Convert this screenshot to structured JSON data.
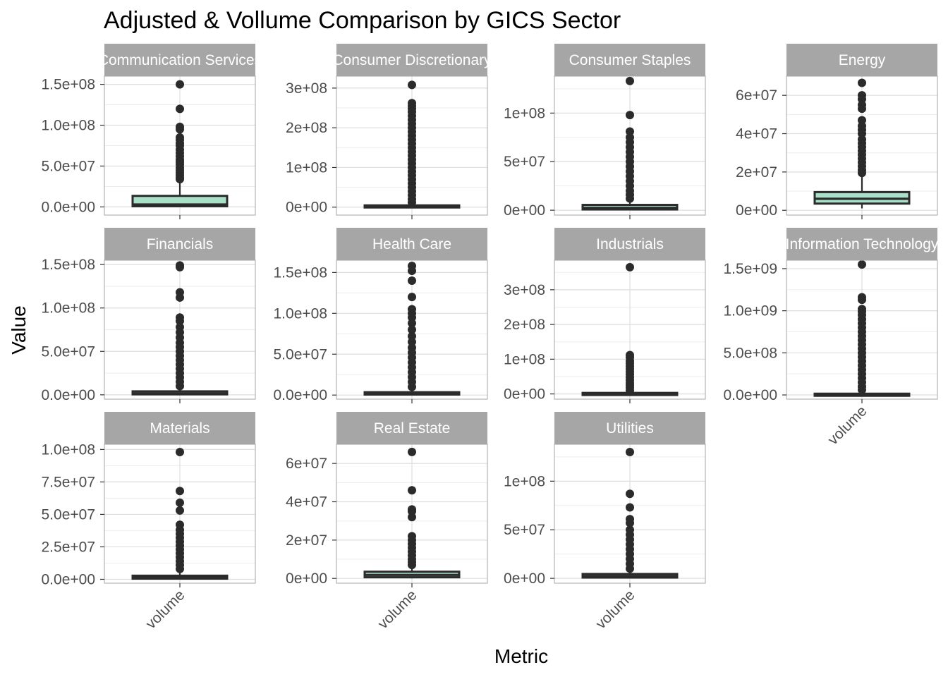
{
  "chart_data": {
    "type": "boxplot",
    "title": "Adjusted & Vollume Comparison by GICS Sector",
    "xlabel": "Metric",
    "ylabel": "Value",
    "x_category": "volume",
    "facet_layout": {
      "columns": 4,
      "rows": 3,
      "scales": "free_y"
    },
    "grid": true,
    "colors": {
      "strip_bg": "#a6a6a6",
      "strip_text": "#ffffff",
      "panel_border": "#b3b3b3",
      "grid_major": "#dedede",
      "grid_minor": "#ededed",
      "box_outline": "#2b2b2b",
      "outlier": "#2b2b2b",
      "box_fill": "#a8e0c8"
    },
    "panels": [
      {
        "sector": "Communication Services",
        "ylim": [
          -10000000.0,
          160000000.0
        ],
        "ticks": [
          0,
          50000000.0,
          100000000.0,
          150000000.0
        ],
        "tick_labels": [
          "0.0e+00",
          "5.0e+07",
          "1.0e+08",
          "1.5e+08"
        ],
        "box": {
          "lower_whisker": 0,
          "q1": 800000,
          "median": 3000000,
          "q3": 13500000,
          "upper_whisker": 33000000
        },
        "outliers": [
          150000000,
          120000000,
          98000000,
          95000000,
          85000000,
          82000000,
          78000000,
          75000000,
          70000000,
          66000000,
          62000000,
          58000000,
          55000000,
          52000000,
          48000000,
          45000000,
          42000000,
          39000000,
          36000000,
          34000000
        ]
      },
      {
        "sector": "Consumer Discretionary",
        "ylim": [
          -20000000.0,
          330000000.0
        ],
        "ticks": [
          0,
          100000000.0,
          200000000.0,
          300000000.0
        ],
        "tick_labels": [
          "0e+00",
          "1e+08",
          "2e+08",
          "3e+08"
        ],
        "box": {
          "lower_whisker": 0,
          "q1": 500000,
          "median": 2000000,
          "q3": 4500000,
          "upper_whisker": 9000000
        },
        "outliers": [
          308000000,
          262000000,
          255000000,
          248000000,
          240000000,
          230000000,
          220000000,
          210000000,
          200000000,
          190000000,
          180000000,
          170000000,
          160000000,
          150000000,
          140000000,
          130000000,
          120000000,
          110000000,
          100000000,
          90000000,
          80000000,
          70000000,
          60000000,
          50000000,
          40000000,
          30000000,
          20000000,
          12000000
        ]
      },
      {
        "sector": "Consumer Staples",
        "ylim": [
          -5000000.0,
          138000000.0
        ],
        "ticks": [
          0,
          50000000.0,
          100000000.0
        ],
        "tick_labels": [
          "0e+00",
          "5e+07",
          "1e+08"
        ],
        "box": {
          "lower_whisker": 0,
          "q1": 800000,
          "median": 2500000,
          "q3": 5500000,
          "upper_whisker": 10000000
        },
        "outliers": [
          133000000,
          98000000,
          81000000,
          75000000,
          70000000,
          65000000,
          60000000,
          55000000,
          50000000,
          45000000,
          40000000,
          35000000,
          30000000,
          25000000,
          20000000,
          16000000,
          12000000
        ]
      },
      {
        "sector": "Energy",
        "ylim": [
          -2500000.0,
          70000000.0
        ],
        "ticks": [
          0,
          20000000.0,
          40000000.0,
          60000000.0
        ],
        "tick_labels": [
          "0e+00",
          "2e+07",
          "4e+07",
          "6e+07"
        ],
        "box": {
          "lower_whisker": 1000000,
          "q1": 3500000,
          "median": 6000000,
          "q3": 9500000,
          "upper_whisker": 18500000
        },
        "outliers": [
          66500000,
          60000000,
          58000000,
          55000000,
          53000000,
          47000000,
          44000000,
          42000000,
          40000000,
          37000000,
          35000000,
          33000000,
          31000000,
          29000000,
          27000000,
          25000000,
          23000000,
          21000000,
          19500000
        ]
      },
      {
        "sector": "Financials",
        "ylim": [
          -5000000.0,
          155000000.0
        ],
        "ticks": [
          0,
          50000000.0,
          100000000.0,
          150000000.0
        ],
        "tick_labels": [
          "0.0e+00",
          "5.0e+07",
          "1.0e+08",
          "1.5e+08"
        ],
        "box": {
          "lower_whisker": 0,
          "q1": 500000,
          "median": 1500000,
          "q3": 4000000,
          "upper_whisker": 7500000
        },
        "outliers": [
          149000000,
          147000000,
          118000000,
          112000000,
          89000000,
          85000000,
          78000000,
          72000000,
          66000000,
          60000000,
          55000000,
          50000000,
          45000000,
          40000000,
          35000000,
          30000000,
          25000000,
          20000000,
          15000000,
          10000000
        ]
      },
      {
        "sector": "Health Care",
        "ylim": [
          -5000000.0,
          165000000.0
        ],
        "ticks": [
          0,
          50000000.0,
          100000000.0,
          150000000.0
        ],
        "tick_labels": [
          "0.0e+00",
          "5.0e+07",
          "1.0e+08",
          "1.5e+08"
        ],
        "box": {
          "lower_whisker": 0,
          "q1": 600000,
          "median": 1800000,
          "q3": 3500000,
          "upper_whisker": 7000000
        },
        "outliers": [
          158000000,
          152000000,
          140000000,
          120000000,
          105000000,
          100000000,
          95000000,
          88000000,
          80000000,
          72000000,
          65000000,
          58000000,
          52000000,
          46000000,
          40000000,
          34000000,
          28000000,
          22000000,
          16000000,
          10000000
        ]
      },
      {
        "sector": "Industrials",
        "ylim": [
          -15000000.0,
          385000000.0
        ],
        "ticks": [
          0,
          100000000.0,
          200000000.0,
          300000000.0
        ],
        "tick_labels": [
          "0e+00",
          "1e+08",
          "2e+08",
          "3e+08"
        ],
        "box": {
          "lower_whisker": 0,
          "q1": 500000,
          "median": 1500000,
          "q3": 3000000,
          "upper_whisker": 6000000
        },
        "outliers": [
          365000000,
          112000000,
          105000000,
          95000000,
          88000000,
          80000000,
          72000000,
          64000000,
          56000000,
          48000000,
          40000000,
          32000000,
          25000000,
          18000000,
          10000000
        ]
      },
      {
        "sector": "Information Technology",
        "ylim": [
          -50000000.0,
          1600000000.0
        ],
        "ticks": [
          0,
          500000000.0,
          1000000000.0,
          1500000000.0
        ],
        "tick_labels": [
          "0.0e+00",
          "5.0e+08",
          "1.0e+09",
          "1.5e+09"
        ],
        "box": {
          "lower_whisker": 0,
          "q1": 2000000,
          "median": 6000000,
          "q3": 15000000,
          "upper_whisker": 30000000
        },
        "outliers": [
          1550000000,
          1160000000,
          1130000000,
          1020000000,
          990000000,
          950000000,
          900000000,
          850000000,
          800000000,
          750000000,
          700000000,
          650000000,
          600000000,
          550000000,
          500000000,
          450000000,
          400000000,
          350000000,
          300000000,
          250000000,
          200000000,
          150000000,
          100000000,
          60000000
        ]
      },
      {
        "sector": "Materials",
        "ylim": [
          -3000000.0,
          104000000.0
        ],
        "ticks": [
          0,
          25000000.0,
          50000000.0,
          75000000.0,
          100000000.0
        ],
        "tick_labels": [
          "0.0e+00",
          "2.5e+07",
          "5.0e+07",
          "7.5e+07",
          "1.0e+08"
        ],
        "box": {
          "lower_whisker": 0,
          "q1": 500000,
          "median": 1500000,
          "q3": 2800000,
          "upper_whisker": 6000000
        },
        "outliers": [
          98000000,
          68000000,
          59000000,
          53000000,
          42000000,
          38000000,
          35000000,
          32000000,
          29000000,
          26000000,
          23000000,
          20000000,
          17000000,
          14000000,
          11000000,
          8000000
        ]
      },
      {
        "sector": "Real Estate",
        "ylim": [
          -2500000.0,
          70000000.0
        ],
        "ticks": [
          0,
          20000000.0,
          40000000.0,
          60000000.0
        ],
        "tick_labels": [
          "0e+00",
          "2e+07",
          "4e+07",
          "6e+07"
        ],
        "box": {
          "lower_whisker": 0,
          "q1": 600000,
          "median": 1800000,
          "q3": 3500000,
          "upper_whisker": 6500000
        },
        "outliers": [
          66000000,
          46000000,
          36000000,
          35000000,
          32000000,
          22000000,
          20000000,
          18000000,
          16000000,
          14000000,
          12000000,
          10000000,
          8500000,
          7000000
        ]
      },
      {
        "sector": "Utilities",
        "ylim": [
          -5000000.0,
          138000000.0
        ],
        "ticks": [
          0,
          50000000.0,
          100000000.0
        ],
        "tick_labels": [
          "0e+00",
          "5e+07",
          "1e+08"
        ],
        "box": {
          "lower_whisker": 0,
          "q1": 800000,
          "median": 2200000,
          "q3": 4500000,
          "upper_whisker": 8000000
        },
        "outliers": [
          130000000,
          87000000,
          73000000,
          61000000,
          57000000,
          50000000,
          45000000,
          40000000,
          35000000,
          30000000,
          25000000,
          20000000,
          15000000,
          10000000
        ]
      }
    ]
  }
}
